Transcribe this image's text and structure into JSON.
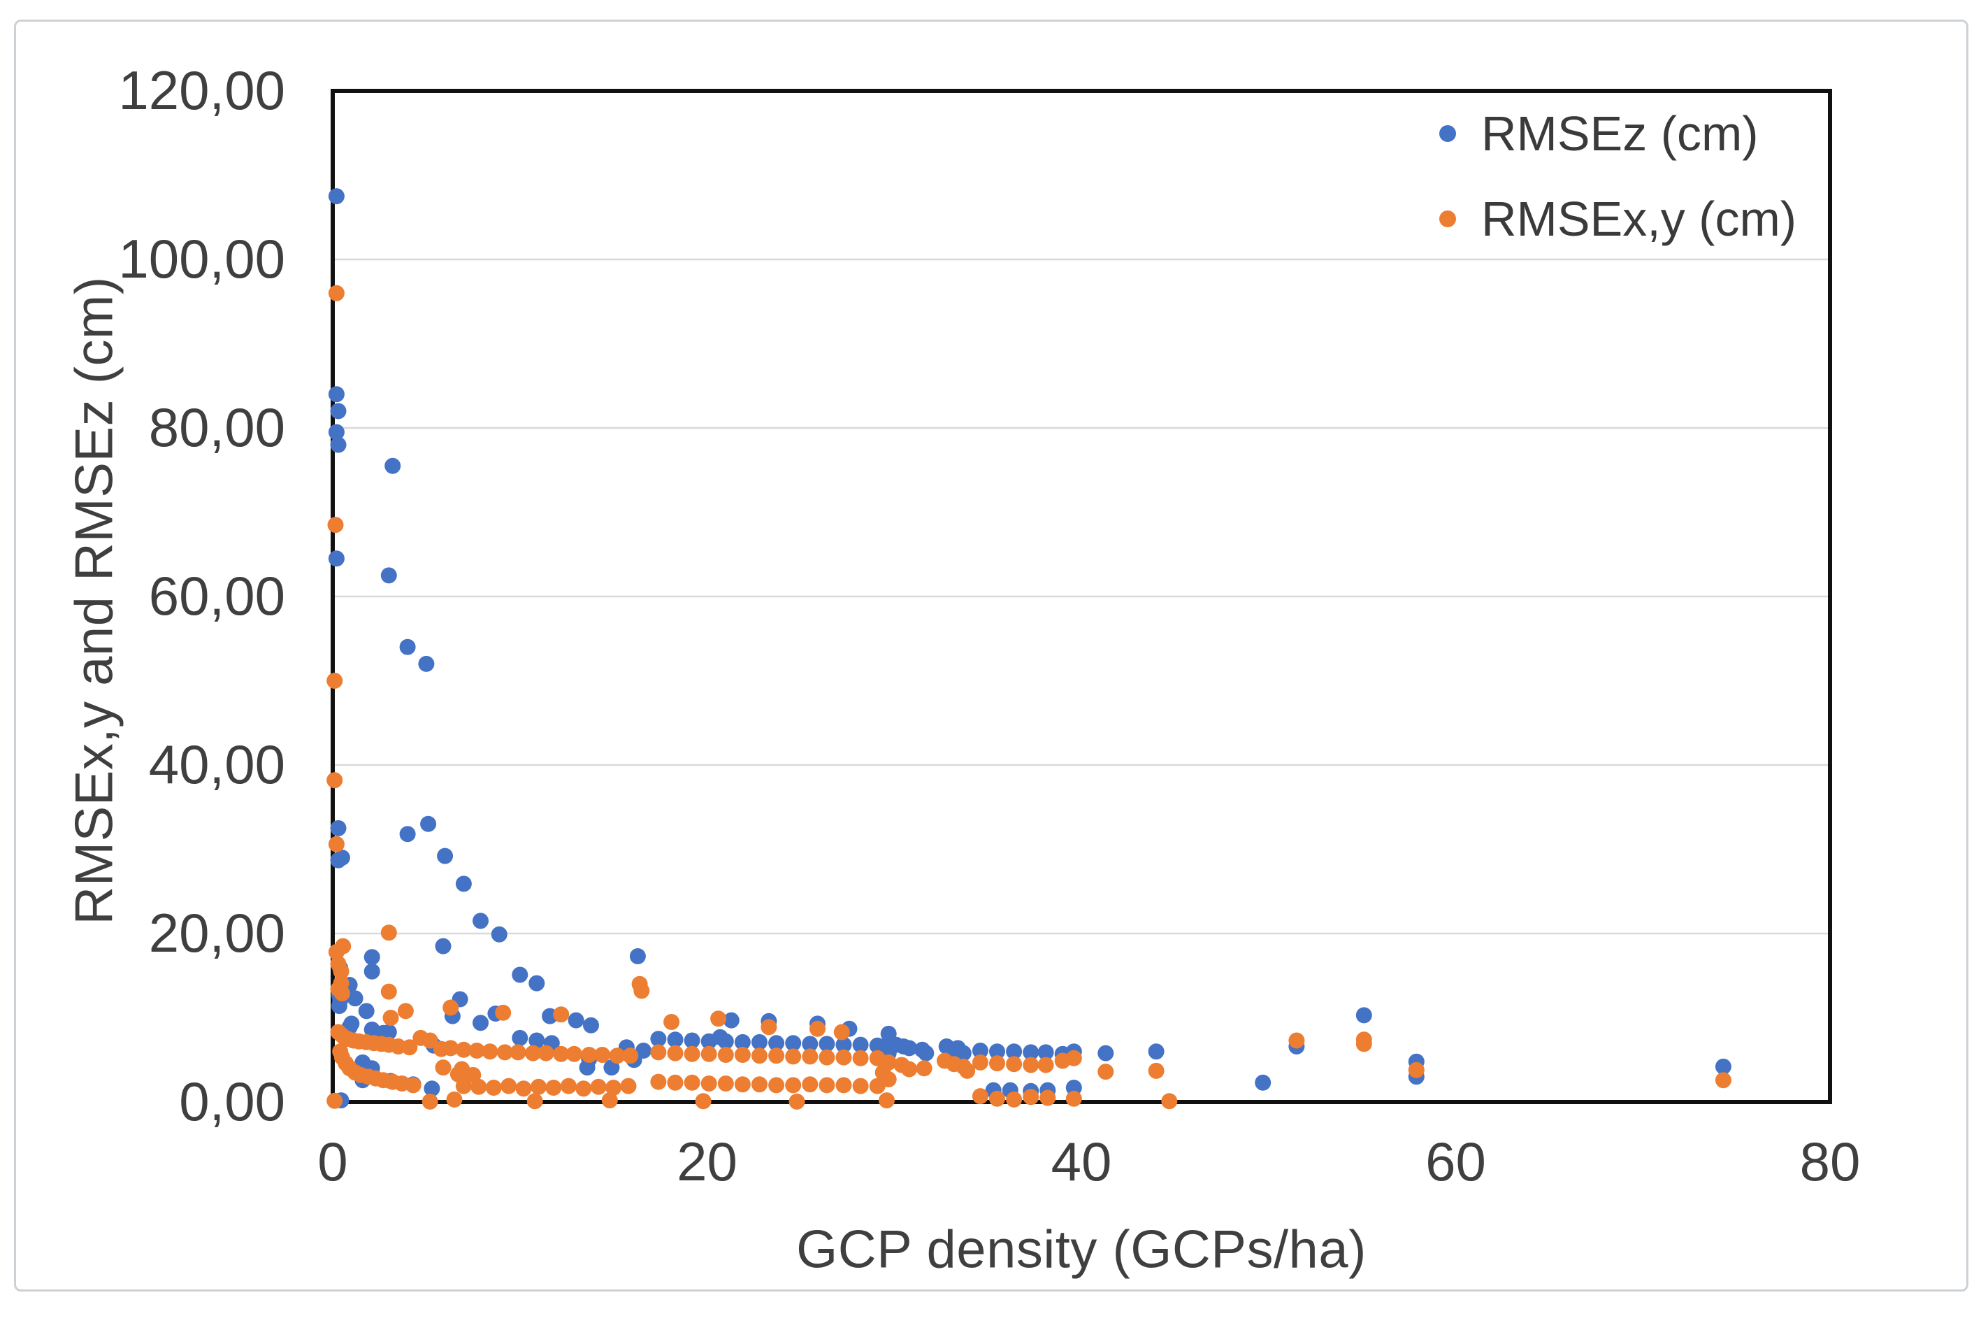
{
  "chart_data": {
    "type": "scatter",
    "title": "",
    "xlabel": "GCP density (GCPs/ha)",
    "ylabel": "RMSEx,y and RMSEz (cm)",
    "xlim": [
      0,
      80
    ],
    "ylim": [
      0,
      120
    ],
    "x_ticks": [
      0,
      20,
      40,
      60,
      80
    ],
    "x_tick_labels": [
      "0",
      "20",
      "40",
      "60",
      "80"
    ],
    "y_ticks": [
      0,
      20,
      40,
      60,
      80,
      100,
      120
    ],
    "y_tick_labels": [
      "0,00",
      "20,00",
      "40,00",
      "60,00",
      "80,00",
      "100,00",
      "120,00"
    ],
    "grid": "horizontal",
    "legend_position": "top-right-inside",
    "marker": "dot",
    "series": [
      {
        "name": "RMSEz (cm)",
        "color": "#4472C4",
        "points": [
          [
            0.2,
            107.5
          ],
          [
            0.2,
            84.0
          ],
          [
            0.3,
            82.0
          ],
          [
            0.2,
            79.5
          ],
          [
            0.3,
            78.0
          ],
          [
            0.2,
            64.5
          ],
          [
            0.3,
            32.5
          ],
          [
            0.5,
            29.0
          ],
          [
            0.3,
            28.7
          ],
          [
            0.4,
            15.9
          ],
          [
            0.35,
            12.7
          ],
          [
            0.4,
            12.1
          ],
          [
            0.35,
            11.4
          ],
          [
            0.45,
            0.2
          ],
          [
            0.9,
            13.9
          ],
          [
            1.2,
            12.3
          ],
          [
            1.0,
            9.3
          ],
          [
            0.9,
            8.9
          ],
          [
            1.8,
            10.8
          ],
          [
            1.6,
            4.7
          ],
          [
            1.6,
            2.6
          ],
          [
            2.1,
            4.0
          ],
          [
            2.1,
            17.2
          ],
          [
            2.1,
            15.5
          ],
          [
            2.1,
            8.6
          ],
          [
            2.7,
            8.2
          ],
          [
            3.0,
            8.3
          ],
          [
            3.1,
            2.5
          ],
          [
            3.2,
            75.5
          ],
          [
            3.0,
            62.5
          ],
          [
            4.0,
            54.0
          ],
          [
            5.0,
            52.0
          ],
          [
            4.0,
            31.8
          ],
          [
            5.1,
            33.0
          ],
          [
            6.0,
            29.2
          ],
          [
            7.0,
            25.9
          ],
          [
            7.9,
            21.5
          ],
          [
            8.9,
            19.9
          ],
          [
            5.9,
            18.5
          ],
          [
            6.4,
            10.2
          ],
          [
            6.8,
            12.2
          ],
          [
            7.9,
            9.4
          ],
          [
            8.7,
            10.5
          ],
          [
            4.3,
            2.1
          ],
          [
            5.3,
            1.6
          ],
          [
            5.4,
            6.7
          ],
          [
            10.0,
            15.1
          ],
          [
            10.9,
            14.1
          ],
          [
            10.0,
            7.6
          ],
          [
            10.9,
            7.3
          ],
          [
            11.7,
            7.0
          ],
          [
            11.6,
            10.2
          ],
          [
            13.0,
            9.7
          ],
          [
            13.8,
            9.1
          ],
          [
            13.7,
            5.1
          ],
          [
            13.6,
            4.1
          ],
          [
            14.9,
            4.1
          ],
          [
            15.7,
            6.5
          ],
          [
            16.1,
            5.0
          ],
          [
            16.6,
            6.1
          ],
          [
            16.3,
            17.3
          ],
          [
            17.4,
            7.5
          ],
          [
            18.3,
            7.4
          ],
          [
            19.2,
            7.3
          ],
          [
            20.1,
            7.2
          ],
          [
            21.0,
            7.2
          ],
          [
            21.9,
            7.1
          ],
          [
            22.8,
            7.1
          ],
          [
            23.7,
            7.0
          ],
          [
            24.6,
            7.0
          ],
          [
            25.5,
            6.9
          ],
          [
            26.4,
            6.9
          ],
          [
            27.3,
            6.8
          ],
          [
            28.2,
            6.8
          ],
          [
            29.1,
            6.7
          ],
          [
            20.7,
            7.7
          ],
          [
            21.3,
            9.7
          ],
          [
            23.3,
            9.6
          ],
          [
            25.9,
            9.3
          ],
          [
            27.6,
            8.7
          ],
          [
            29.7,
            8.1
          ],
          [
            29.5,
            6.6
          ],
          [
            30.1,
            6.8
          ],
          [
            30.5,
            6.6
          ],
          [
            30.8,
            6.4
          ],
          [
            29.7,
            5.8
          ],
          [
            31.5,
            6.2
          ],
          [
            31.7,
            5.8
          ],
          [
            32.8,
            6.6
          ],
          [
            33.1,
            6.1
          ],
          [
            33.4,
            6.4
          ],
          [
            33.7,
            5.8
          ],
          [
            34.6,
            6.1
          ],
          [
            35.5,
            6.0
          ],
          [
            36.4,
            6.0
          ],
          [
            37.3,
            5.9
          ],
          [
            38.1,
            5.9
          ],
          [
            39.0,
            5.7
          ],
          [
            35.3,
            1.4
          ],
          [
            36.2,
            1.4
          ],
          [
            37.3,
            1.3
          ],
          [
            38.2,
            1.4
          ],
          [
            39.6,
            6.0
          ],
          [
            39.6,
            1.7
          ],
          [
            41.3,
            5.8
          ],
          [
            44.0,
            6.0
          ],
          [
            49.7,
            2.3
          ],
          [
            51.5,
            6.6
          ],
          [
            55.1,
            10.3
          ],
          [
            57.9,
            4.8
          ],
          [
            57.9,
            3.0
          ],
          [
            74.3,
            4.2
          ]
        ]
      },
      {
        "name": "RMSEx,y (cm)",
        "color": "#ED7D31",
        "points": [
          [
            0.2,
            96.0
          ],
          [
            0.15,
            68.5
          ],
          [
            0.1,
            50.0
          ],
          [
            0.1,
            38.2
          ],
          [
            0.2,
            30.6
          ],
          [
            0.55,
            18.5
          ],
          [
            0.2,
            17.8
          ],
          [
            0.3,
            16.4
          ],
          [
            0.45,
            15.5
          ],
          [
            0.45,
            14.1
          ],
          [
            0.3,
            13.4
          ],
          [
            0.5,
            12.9
          ],
          [
            0.3,
            8.3
          ],
          [
            0.45,
            8.0
          ],
          [
            0.6,
            7.7
          ],
          [
            0.8,
            7.5
          ],
          [
            1.1,
            7.3
          ],
          [
            1.4,
            7.2
          ],
          [
            1.8,
            7.1
          ],
          [
            2.2,
            7.0
          ],
          [
            2.6,
            6.9
          ],
          [
            3.0,
            6.8
          ],
          [
            3.5,
            6.6
          ],
          [
            4.1,
            6.5
          ],
          [
            4.7,
            7.6
          ],
          [
            5.2,
            7.3
          ],
          [
            5.8,
            6.3
          ],
          [
            6.3,
            6.4
          ],
          [
            7.0,
            6.2
          ],
          [
            7.7,
            6.1
          ],
          [
            8.4,
            6.0
          ],
          [
            9.2,
            5.9
          ],
          [
            9.9,
            5.9
          ],
          [
            10.7,
            5.8
          ],
          [
            11.4,
            5.8
          ],
          [
            12.2,
            5.7
          ],
          [
            12.9,
            5.7
          ],
          [
            13.7,
            5.6
          ],
          [
            14.4,
            5.6
          ],
          [
            15.2,
            5.5
          ],
          [
            15.9,
            5.5
          ],
          [
            0.4,
            6.0
          ],
          [
            0.5,
            5.3
          ],
          [
            0.7,
            4.6
          ],
          [
            0.9,
            4.0
          ],
          [
            1.2,
            3.5
          ],
          [
            1.5,
            3.2
          ],
          [
            1.9,
            3.0
          ],
          [
            2.3,
            2.8
          ],
          [
            2.7,
            2.6
          ],
          [
            3.2,
            2.4
          ],
          [
            3.7,
            2.2
          ],
          [
            4.3,
            2.0
          ],
          [
            5.9,
            4.1
          ],
          [
            6.7,
            3.3
          ],
          [
            6.9,
            3.9
          ],
          [
            7.5,
            3.2
          ],
          [
            7.0,
            1.9
          ],
          [
            7.8,
            1.8
          ],
          [
            8.6,
            1.7
          ],
          [
            9.4,
            1.9
          ],
          [
            10.2,
            1.6
          ],
          [
            11.0,
            1.8
          ],
          [
            11.8,
            1.7
          ],
          [
            12.6,
            1.9
          ],
          [
            13.4,
            1.6
          ],
          [
            14.2,
            1.8
          ],
          [
            15.0,
            1.7
          ],
          [
            15.8,
            1.9
          ],
          [
            3.0,
            20.1
          ],
          [
            3.0,
            13.1
          ],
          [
            3.1,
            10.0
          ],
          [
            3.9,
            10.8
          ],
          [
            6.3,
            11.2
          ],
          [
            9.1,
            10.6
          ],
          [
            12.2,
            10.4
          ],
          [
            16.4,
            14.0
          ],
          [
            16.5,
            13.2
          ],
          [
            18.1,
            9.5
          ],
          [
            20.6,
            9.9
          ],
          [
            23.3,
            8.9
          ],
          [
            25.9,
            8.7
          ],
          [
            27.2,
            8.3
          ],
          [
            17.4,
            5.9
          ],
          [
            18.3,
            5.8
          ],
          [
            19.2,
            5.7
          ],
          [
            20.1,
            5.7
          ],
          [
            21.0,
            5.6
          ],
          [
            21.9,
            5.6
          ],
          [
            22.8,
            5.5
          ],
          [
            23.7,
            5.5
          ],
          [
            24.6,
            5.4
          ],
          [
            25.5,
            5.4
          ],
          [
            26.4,
            5.3
          ],
          [
            27.3,
            5.3
          ],
          [
            28.2,
            5.2
          ],
          [
            29.1,
            5.2
          ],
          [
            17.4,
            2.4
          ],
          [
            18.3,
            2.3
          ],
          [
            19.2,
            2.3
          ],
          [
            20.1,
            2.2
          ],
          [
            21.0,
            2.2
          ],
          [
            21.9,
            2.1
          ],
          [
            22.8,
            2.1
          ],
          [
            23.7,
            2.0
          ],
          [
            24.6,
            2.0
          ],
          [
            25.5,
            2.1
          ],
          [
            26.4,
            2.0
          ],
          [
            27.3,
            2.0
          ],
          [
            28.2,
            1.9
          ],
          [
            29.1,
            1.9
          ],
          [
            0.1,
            0.15
          ],
          [
            5.2,
            0.05
          ],
          [
            6.5,
            0.3
          ],
          [
            10.8,
            0.1
          ],
          [
            14.8,
            0.2
          ],
          [
            19.8,
            0.1
          ],
          [
            24.8,
            0.05
          ],
          [
            29.6,
            0.2
          ],
          [
            39.6,
            0.4
          ],
          [
            44.7,
            0.1
          ],
          [
            29.7,
            4.7
          ],
          [
            29.4,
            3.5
          ],
          [
            29.7,
            2.7
          ],
          [
            30.4,
            4.4
          ],
          [
            30.8,
            3.9
          ],
          [
            31.6,
            4.0
          ],
          [
            32.7,
            4.9
          ],
          [
            33.2,
            4.5
          ],
          [
            33.7,
            4.2
          ],
          [
            33.9,
            3.7
          ],
          [
            34.6,
            4.7
          ],
          [
            35.5,
            4.6
          ],
          [
            36.4,
            4.5
          ],
          [
            37.3,
            4.4
          ],
          [
            38.1,
            4.4
          ],
          [
            39.0,
            4.9
          ],
          [
            34.6,
            0.7
          ],
          [
            35.5,
            0.4
          ],
          [
            36.4,
            0.3
          ],
          [
            37.3,
            0.6
          ],
          [
            38.2,
            0.5
          ],
          [
            39.6,
            5.2
          ],
          [
            41.3,
            3.6
          ],
          [
            44.0,
            3.7
          ],
          [
            51.5,
            7.3
          ],
          [
            55.1,
            7.4
          ],
          [
            55.1,
            6.9
          ],
          [
            57.9,
            3.8
          ],
          [
            74.3,
            2.6
          ]
        ]
      }
    ]
  },
  "colors": {
    "grid": "#d9d9d9",
    "frame": "#111111",
    "tick_text": "#3f3f3f",
    "axis_title_text": "#3f3f3f",
    "series_blue": "#4472C4",
    "series_orange": "#ED7D31",
    "figure_border": "#ccd1d6"
  }
}
